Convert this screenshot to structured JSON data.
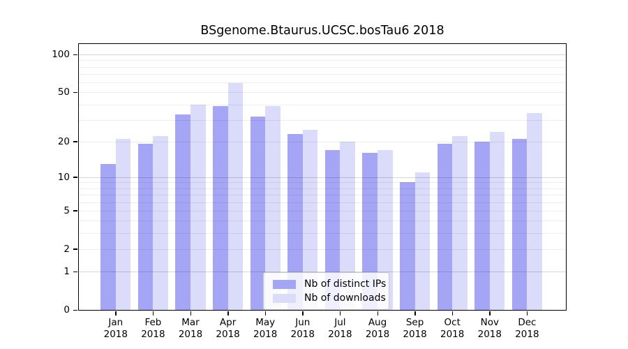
{
  "figure": {
    "title": "BSgenome.Btaurus.UCSC.bosTau6 2018"
  },
  "legend": {
    "items": [
      {
        "label": "Nb of distinct IPs",
        "color": "#A5A5F5"
      },
      {
        "label": "Nb of downloads",
        "color": "#DBDBFA"
      }
    ]
  },
  "chart_data": {
    "type": "bar",
    "title": "BSgenome.Btaurus.UCSC.bosTau6 2018",
    "xlabel": "",
    "ylabel": "",
    "categories": [
      "Jan",
      "Feb",
      "Mar",
      "Apr",
      "May",
      "Jun",
      "Jul",
      "Aug",
      "Sep",
      "Oct",
      "Nov",
      "Dec"
    ],
    "x_sublabel": "2018",
    "series": [
      {
        "name": "Nb of distinct IPs",
        "color": "#A5A5F5",
        "values": [
          13,
          19,
          33,
          39,
          32,
          23,
          17,
          16,
          9,
          19,
          20,
          21
        ]
      },
      {
        "name": "Nb of downloads",
        "color": "#DBDBFA",
        "values": [
          21,
          22,
          40,
          59,
          39,
          25,
          20,
          17,
          11,
          22,
          24,
          34
        ]
      }
    ],
    "yscale": "log1p",
    "ylim": [
      0,
      125
    ],
    "ytick_values": [
      0,
      1,
      2,
      5,
      10,
      20,
      50,
      100
    ],
    "grid": true,
    "grid_values": [
      1,
      2,
      3,
      4,
      5,
      6,
      7,
      8,
      9,
      10,
      20,
      30,
      40,
      50,
      60,
      70,
      80,
      90,
      100
    ],
    "major_grid_values": [
      1,
      10,
      100
    ],
    "legend_position": "inside lower center-right"
  }
}
